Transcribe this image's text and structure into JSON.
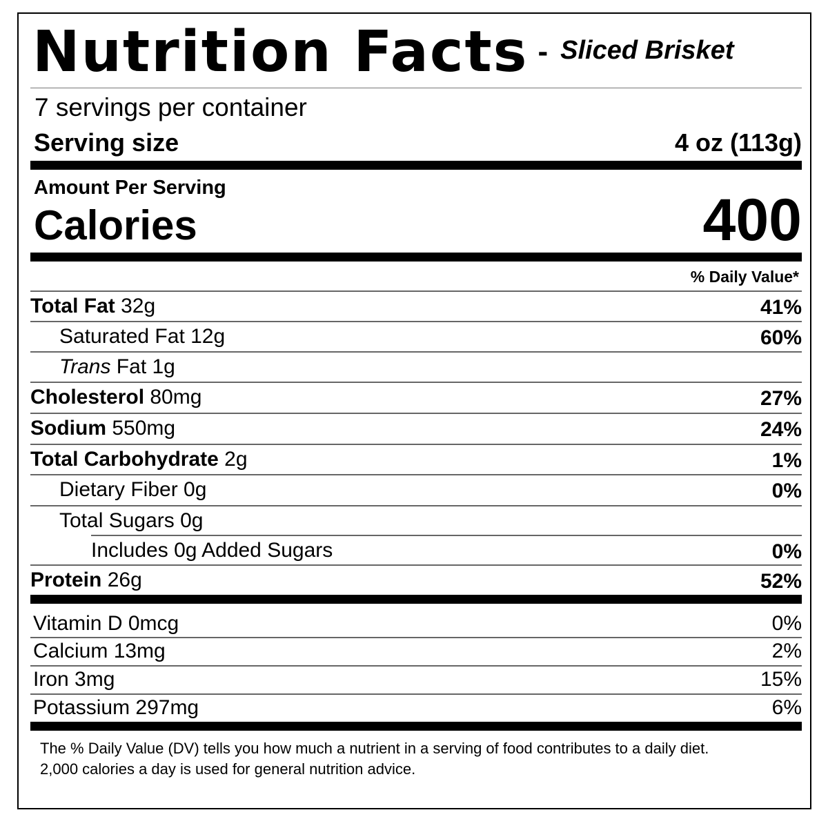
{
  "label": {
    "title": "Nutrition Facts",
    "title_dash": "-",
    "product": "Sliced Brisket",
    "servings_per_container": "7 servings per container",
    "serving_size_label": "Serving size",
    "serving_size_value": "4 oz (113g)",
    "amount_per_serving": "Amount Per Serving",
    "calories_label": "Calories",
    "calories_value": "400",
    "daily_value_header": "% Daily Value*",
    "nutrients": [
      {
        "bold": "Total Fat",
        "italic": "",
        "rest": " 32g",
        "dv": "41%"
      },
      {
        "bold": "",
        "italic": "",
        "rest": "Saturated Fat 12g",
        "dv": "60%"
      },
      {
        "bold": "",
        "italic": "Trans",
        "rest": " Fat 1g",
        "dv": ""
      },
      {
        "bold": "Cholesterol",
        "italic": "",
        "rest": " 80mg",
        "dv": "27%"
      },
      {
        "bold": "Sodium",
        "italic": "",
        "rest": " 550mg",
        "dv": "24%"
      },
      {
        "bold": "Total Carbohydrate",
        "italic": "",
        "rest": " 2g",
        "dv": "1%"
      },
      {
        "bold": "",
        "italic": "",
        "rest": "Dietary Fiber 0g",
        "dv": "0%"
      },
      {
        "bold": "",
        "italic": "",
        "rest": "Total Sugars 0g",
        "dv": ""
      },
      {
        "bold": "",
        "italic": "",
        "rest": "Includes 0g Added Sugars",
        "dv": "0%"
      },
      {
        "bold": "Protein",
        "italic": "",
        "rest": " 26g",
        "dv": "52%"
      }
    ],
    "vitamins": [
      {
        "name": "Vitamin D 0mcg",
        "dv": "0%"
      },
      {
        "name": "Calcium 13mg",
        "dv": "2%"
      },
      {
        "name": "Iron 3mg",
        "dv": "15%"
      },
      {
        "name": "Potassium 297mg",
        "dv": "6%"
      }
    ],
    "footnote_line1": "The % Daily Value (DV) tells you how much a nutrient in a serving of food contributes to a daily diet.",
    "footnote_line2": "2,000 calories a day is used for general nutrition advice."
  }
}
